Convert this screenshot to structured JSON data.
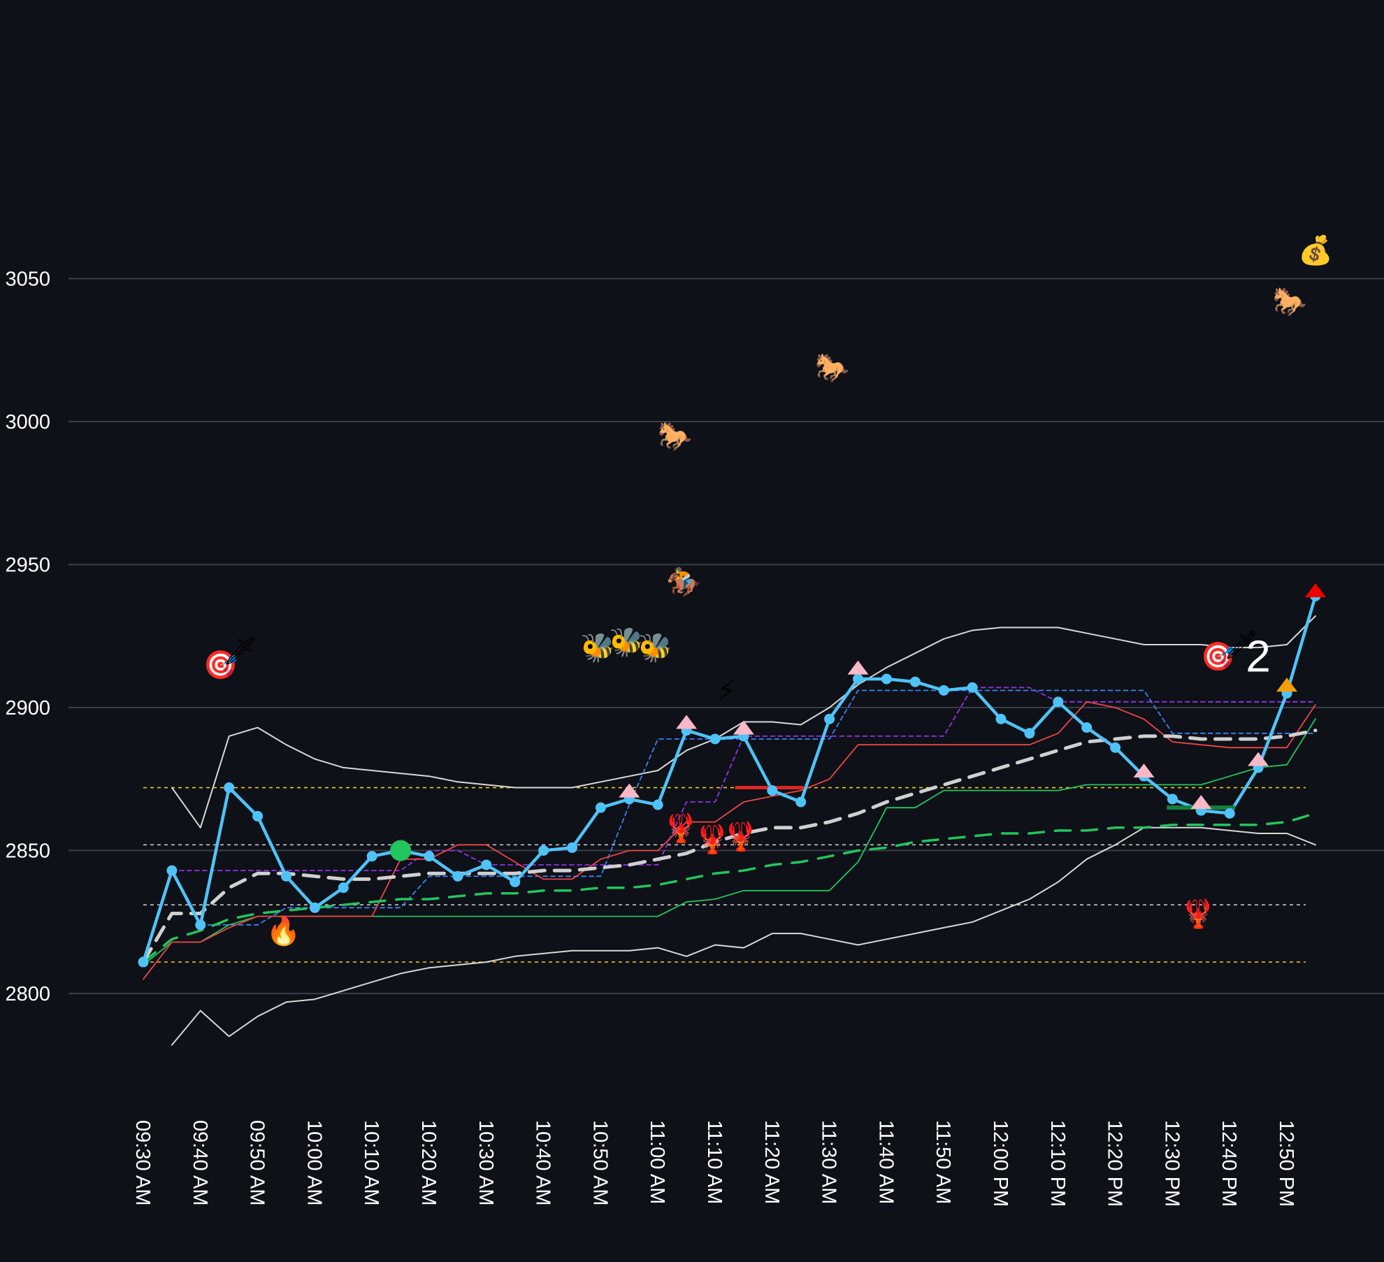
{
  "chart_data": {
    "type": "line",
    "title": "",
    "xlabel": "",
    "ylabel": "",
    "ylim": [
      2760,
      3145
    ],
    "y_ticks": [
      {
        "value": 2800,
        "label": "2800"
      },
      {
        "value": 2850,
        "label": "2850"
      },
      {
        "value": 2900,
        "label": "2900"
      },
      {
        "value": 2950,
        "label": "2950"
      },
      {
        "value": 3000,
        "label": "3000"
      },
      {
        "value": 3050,
        "label": "3050"
      }
    ],
    "x_ticks": [
      "09:30 AM",
      "09:40 AM",
      "09:50 AM",
      "10:00 AM",
      "10:10 AM",
      "10:20 AM",
      "10:30 AM",
      "10:40 AM",
      "10:50 AM",
      "11:00 AM",
      "11:10 AM",
      "11:20 AM",
      "11:30 AM",
      "11:40 AM",
      "11:50 AM",
      "12:00 PM",
      "12:10 PM",
      "12:20 PM",
      "12:30 PM",
      "12:40 PM",
      "12:50 PM"
    ],
    "grid": "horizontal",
    "colors": {
      "background": "#0e1117",
      "grid": "#3a3d44",
      "price": "#4fc3f7",
      "bands": "#d8d8d8",
      "trend": "#d0d0d0",
      "red_line": "#ef4444",
      "green_line": "#22c55e",
      "purple_line": "#9333ea",
      "blue_dashed": "#3b82f6",
      "yellow_level": "#facc15",
      "gray_level": "#c8c8c8",
      "pink_marker": "#f9b8c8",
      "text": "#ffffff"
    },
    "horizontal_levels": [
      {
        "y": 2872,
        "style": "yellow"
      },
      {
        "y": 2811,
        "style": "yellow"
      },
      {
        "y": 2852,
        "style": "gray"
      },
      {
        "y": 2831,
        "style": "gray"
      }
    ],
    "series": [
      {
        "role": "price",
        "style": "solid-thick-markers",
        "x_start": 0,
        "values": [
          2811,
          2843,
          2824,
          2872,
          2862,
          2841,
          2830,
          2837,
          2848,
          2850,
          2848,
          2841,
          2845,
          2839,
          2850,
          2851,
          2865,
          2868,
          2866,
          2892,
          2889,
          2890,
          2871,
          2867,
          2896,
          2910,
          2910,
          2909,
          2906,
          2907,
          2896,
          2891,
          2902,
          2893,
          2886,
          2876,
          2868,
          2864,
          2863,
          2879,
          2905,
          2939
        ]
      },
      {
        "role": "upper-band",
        "style": "solid-thin",
        "x_start": 1,
        "values": [
          2872,
          2858,
          2890,
          2893,
          2887,
          2882,
          2879,
          2878,
          2877,
          2876,
          2874,
          2873,
          2872,
          2872,
          2872,
          2874,
          2876,
          2878,
          2885,
          2889,
          2895,
          2895,
          2894,
          2900,
          2908,
          2914,
          2919,
          2924,
          2927,
          2928,
          2928,
          2928,
          2926,
          2924,
          2922,
          2922,
          2922,
          2921,
          2921,
          2922,
          2932
        ]
      },
      {
        "role": "lower-band",
        "style": "solid-thin",
        "x_start": 1,
        "values": [
          2782,
          2794,
          2785,
          2792,
          2797,
          2798,
          2801,
          2804,
          2807,
          2809,
          2810,
          2811,
          2813,
          2814,
          2815,
          2815,
          2815,
          2816,
          2813,
          2817,
          2816,
          2821,
          2821,
          2819,
          2817,
          2819,
          2821,
          2823,
          2825,
          2829,
          2833,
          2839,
          2847,
          2852,
          2858,
          2858,
          2858,
          2857,
          2856,
          2856,
          2852
        ]
      },
      {
        "role": "trend",
        "style": "dashed-thick",
        "x_start": 0,
        "values": [
          2811,
          2828,
          2828,
          2837,
          2842,
          2842,
          2841,
          2840,
          2840,
          2841,
          2842,
          2842,
          2842,
          2842,
          2843,
          2843,
          2844,
          2845,
          2847,
          2849,
          2853,
          2856,
          2858,
          2858,
          2860,
          2863,
          2867,
          2870,
          2873,
          2876,
          2879,
          2882,
          2885,
          2888,
          2889,
          2890,
          2890,
          2889,
          2889,
          2889,
          2890,
          2892
        ]
      },
      {
        "role": "red-line",
        "style": "solid-thin",
        "x_start": 0,
        "values": [
          2805,
          2818,
          2818,
          2823,
          2827,
          2827,
          2827,
          2827,
          2827,
          2847,
          2847,
          2852,
          2852,
          2846,
          2840,
          2840,
          2847,
          2850,
          2850,
          2860,
          2860,
          2867,
          2869,
          2871,
          2875,
          2887,
          2887,
          2887,
          2887,
          2887,
          2887,
          2887,
          2891,
          2902,
          2900,
          2896,
          2888,
          2887,
          2886,
          2886,
          2886,
          2901
        ]
      },
      {
        "role": "green-line",
        "style": "solid-thin",
        "x_start": 0,
        "values": [
          2810,
          2818,
          2818,
          2824,
          2827,
          2827,
          2827,
          2827,
          2827,
          2827,
          2827,
          2827,
          2827,
          2827,
          2827,
          2827,
          2827,
          2827,
          2827,
          2832,
          2833,
          2836,
          2836,
          2836,
          2836,
          2846,
          2865,
          2865,
          2871,
          2871,
          2871,
          2871,
          2871,
          2873,
          2873,
          2873,
          2873,
          2873,
          2876,
          2879,
          2880,
          2896
        ]
      },
      {
        "role": "green-dashed",
        "style": "dashed-thick",
        "x_start": 0,
        "values": [
          2811,
          2819,
          2822,
          2826,
          2828,
          2829,
          2830,
          2831,
          2832,
          2833,
          2833,
          2834,
          2835,
          2835,
          2836,
          2836,
          2837,
          2837,
          2838,
          2840,
          2842,
          2843,
          2845,
          2846,
          2848,
          2850,
          2851,
          2853,
          2854,
          2855,
          2856,
          2856,
          2857,
          2857,
          2858,
          2858,
          2859,
          2859,
          2859,
          2859,
          2860,
          2863
        ]
      },
      {
        "role": "purple-dotted",
        "style": "dashed-thin",
        "x_start": 1,
        "values": [
          2843,
          2843,
          2843,
          2843,
          2843,
          2843,
          2843,
          2843,
          2843,
          2850,
          2850,
          2845,
          2845,
          2845,
          2845,
          2845,
          2845,
          2845,
          2867,
          2867,
          2890,
          2890,
          2890,
          2890,
          2890,
          2890,
          2890,
          2890,
          2907,
          2907,
          2907,
          2902,
          2902,
          2902,
          2902,
          2902,
          2902,
          2902,
          2902,
          2902,
          2902
        ]
      },
      {
        "role": "blue-dotted",
        "style": "dashed-thin",
        "x_start": 2,
        "values": [
          2824,
          2824,
          2824,
          2830,
          2830,
          2830,
          2830,
          2830,
          2841,
          2841,
          2841,
          2841,
          2841,
          2841,
          2841,
          2866,
          2889,
          2889,
          2889,
          2889,
          2889,
          2889,
          2889,
          2906,
          2906,
          2906,
          2906,
          2906,
          2906,
          2906,
          2906,
          2906,
          2906,
          2906,
          2891,
          2891,
          2891,
          2891,
          2891,
          2891
        ]
      }
    ],
    "price_highlights": [
      {
        "x": 9,
        "kind": "green-circle"
      }
    ],
    "red_segments": [
      {
        "x0": 20.7,
        "x1": 23.1,
        "y": 2872
      }
    ],
    "green_segments": [
      {
        "x0": 35.8,
        "x1": 38.2,
        "y": 2865
      }
    ],
    "triangles": [
      {
        "x": 17,
        "y": 2871,
        "color": "pink"
      },
      {
        "x": 19,
        "y": 2895,
        "color": "pink"
      },
      {
        "x": 21,
        "y": 2893,
        "color": "pink"
      },
      {
        "x": 25,
        "y": 2914,
        "color": "pink"
      },
      {
        "x": 35,
        "y": 2878,
        "color": "pink"
      },
      {
        "x": 37,
        "y": 2867,
        "color": "pink"
      },
      {
        "x": 39,
        "y": 2882,
        "color": "pink"
      },
      {
        "x": 40,
        "y": 2908,
        "color": "orange"
      },
      {
        "x": 41,
        "y": 2941,
        "color": "red"
      }
    ],
    "markers": [
      {
        "icon": "target-dart-icon",
        "symbol": "🎯",
        "x": 2.7,
        "y": 2915
      },
      {
        "icon": "dart-icon",
        "symbol": "🗡",
        "x": 3.4,
        "y": 2920
      },
      {
        "icon": "fire-icon",
        "symbol": "🔥",
        "x": 4.9,
        "y": 2822
      },
      {
        "icon": "bee-icon",
        "symbol": "🐝",
        "x": 15.9,
        "y": 2921
      },
      {
        "icon": "bee-icon",
        "symbol": "🐝",
        "x": 16.9,
        "y": 2923
      },
      {
        "icon": "bee-icon",
        "symbol": "🐝",
        "x": 17.9,
        "y": 2921
      },
      {
        "icon": "jockey-icon",
        "symbol": "🏇",
        "x": 18.9,
        "y": 2944
      },
      {
        "icon": "horse-icon",
        "symbol": "🐎",
        "x": 18.6,
        "y": 2995
      },
      {
        "icon": "horse-icon",
        "symbol": "🐎",
        "x": 24.1,
        "y": 3019
      },
      {
        "icon": "horse-icon",
        "symbol": "🐎",
        "x": 40.1,
        "y": 3042
      },
      {
        "icon": "lightning-icon",
        "symbol": "⚡",
        "x": 20.4,
        "y": 2906
      },
      {
        "icon": "lobster-icon",
        "symbol": "🦞",
        "x": 18.8,
        "y": 2858
      },
      {
        "icon": "lobster-icon",
        "symbol": "🦞",
        "x": 19.9,
        "y": 2854
      },
      {
        "icon": "lobster-icon",
        "symbol": "🦞",
        "x": 20.9,
        "y": 2855
      },
      {
        "icon": "lobster-icon",
        "symbol": "🦞",
        "x": 36.9,
        "y": 2828
      },
      {
        "icon": "money-bag-icon",
        "symbol": "💰",
        "x": 41.0,
        "y": 3060
      },
      {
        "icon": "target-dart-icon",
        "symbol": "🎯",
        "x": 37.6,
        "y": 2918
      },
      {
        "icon": "dart-icon",
        "symbol": "🗡",
        "x": 38.4,
        "y": 2922
      }
    ],
    "annotations": [
      {
        "text": "2",
        "x": 39.0,
        "y": 2918
      }
    ]
  }
}
